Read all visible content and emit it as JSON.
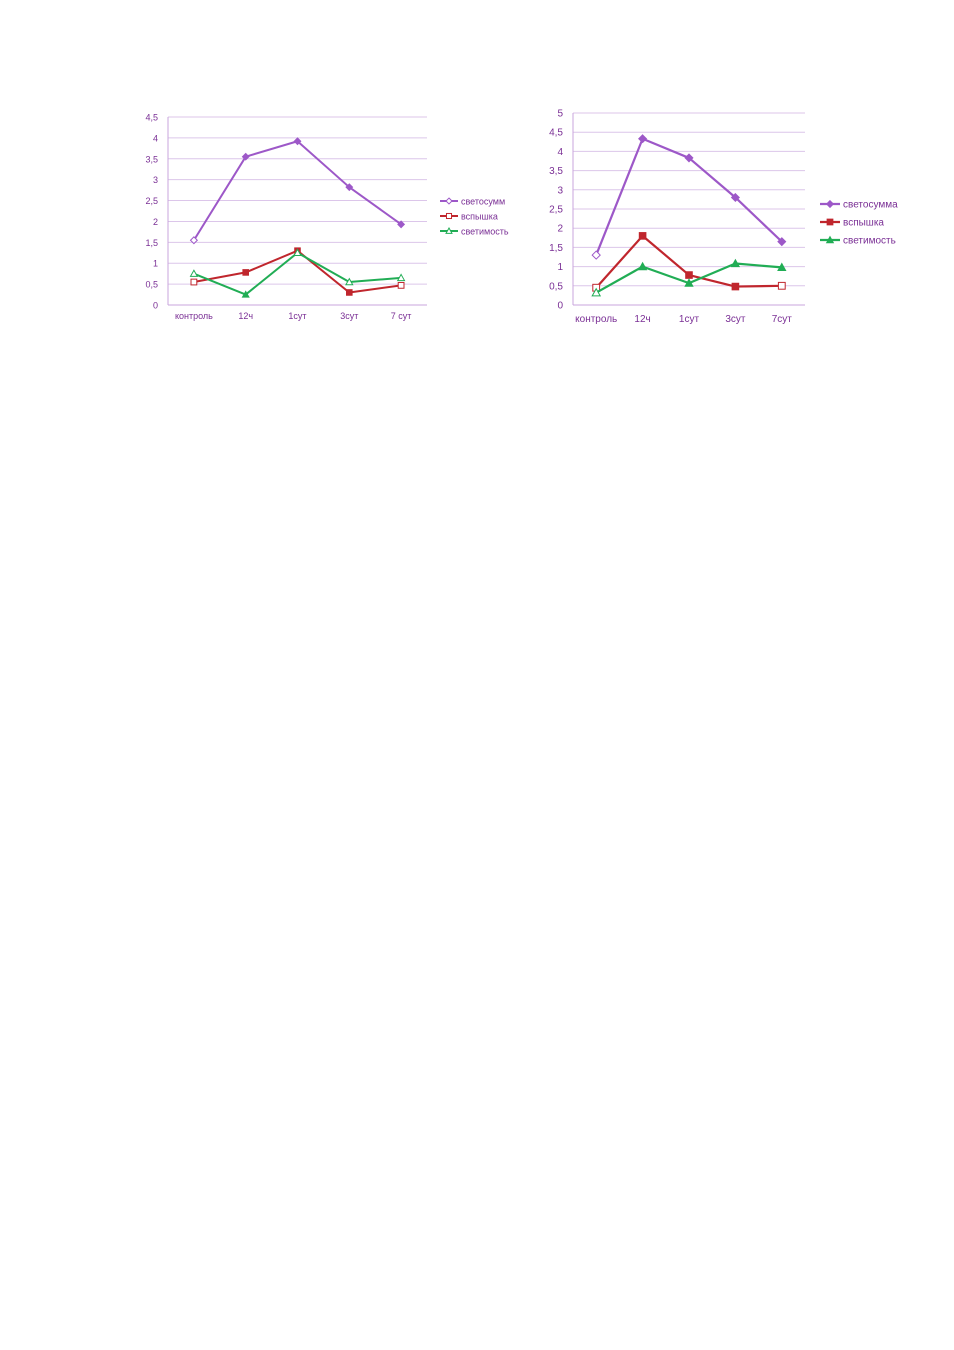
{
  "chart_data": [
    {
      "type": "line",
      "categories": [
        "контроль",
        "12ч",
        "1сут",
        "3сут",
        "7 сут"
      ],
      "ylim": [
        0,
        4.5
      ],
      "y_ticks": [
        "0",
        "0,5",
        "1",
        "1,5",
        "2",
        "2,5",
        "3",
        "3,5",
        "4",
        "4,5"
      ],
      "grid": true,
      "legend_position": "right",
      "series": [
        {
          "name": "светосумм",
          "color": "#9d58c8",
          "marker": "diamond",
          "values": [
            1.55,
            3.55,
            3.92,
            2.82,
            1.93
          ],
          "hollow": [
            true,
            false,
            false,
            false,
            false
          ]
        },
        {
          "name": "вспышка",
          "color": "#c0262d",
          "marker": "square",
          "values": [
            0.55,
            0.78,
            1.3,
            0.3,
            0.47
          ],
          "hollow": [
            true,
            false,
            false,
            false,
            true
          ]
        },
        {
          "name": "светимость",
          "color": "#21ad55",
          "marker": "triangle",
          "values": [
            0.75,
            0.25,
            1.25,
            0.55,
            0.65
          ],
          "hollow": [
            true,
            false,
            true,
            true,
            true
          ]
        }
      ]
    },
    {
      "type": "line",
      "categories": [
        "контроль",
        "12ч",
        "1сут",
        "3сут",
        "7сут"
      ],
      "ylim": [
        0,
        5
      ],
      "y_ticks": [
        "0",
        "0,5",
        "1",
        "1,5",
        "2",
        "2,5",
        "3",
        "3,5",
        "4",
        "4,5",
        "5"
      ],
      "grid": true,
      "legend_position": "right",
      "series": [
        {
          "name": "светосумма",
          "color": "#9d58c8",
          "marker": "diamond",
          "values": [
            1.3,
            4.33,
            3.83,
            2.8,
            1.65
          ],
          "hollow": [
            true,
            false,
            false,
            false,
            false
          ]
        },
        {
          "name": "вспышка",
          "color": "#c0262d",
          "marker": "square",
          "values": [
            0.45,
            1.8,
            0.78,
            0.48,
            0.5
          ],
          "hollow": [
            true,
            false,
            false,
            false,
            true
          ]
        },
        {
          "name": "светимость",
          "color": "#21ad55",
          "marker": "triangle",
          "values": [
            0.32,
            1.0,
            0.57,
            1.08,
            0.98
          ],
          "hollow": [
            true,
            false,
            false,
            false,
            false
          ]
        }
      ]
    }
  ]
}
